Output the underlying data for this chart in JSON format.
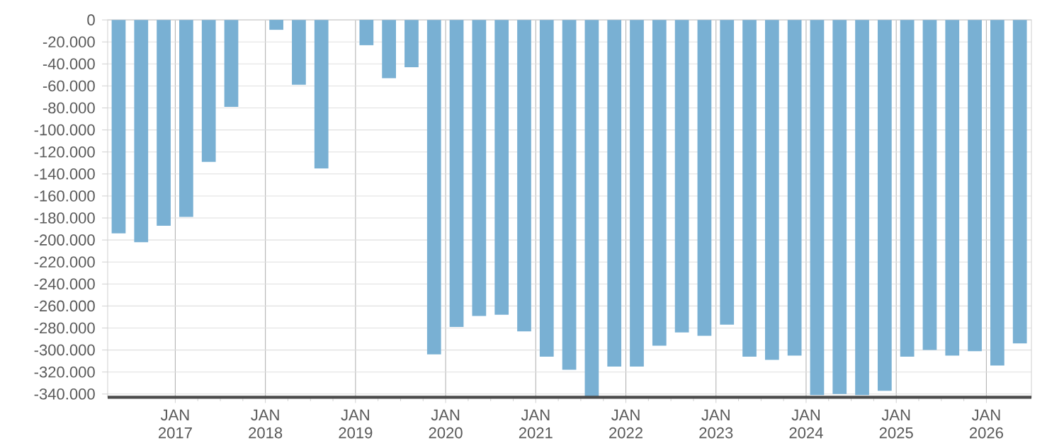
{
  "chart_data": {
    "type": "bar",
    "color": "#79b0d3",
    "grid": true,
    "x": [
      "2016-05-15",
      "2016-08-15",
      "2016-11-15",
      "2017-02-15",
      "2017-05-15",
      "2017-08-15",
      "2017-11-15",
      "2018-02-15",
      "2018-05-15",
      "2018-08-15",
      "2018-11-15",
      "2019-02-15",
      "2019-05-15",
      "2019-08-15",
      "2019-11-15",
      "2020-02-15",
      "2020-05-15",
      "2020-08-15",
      "2020-11-15",
      "2021-02-15",
      "2021-05-15",
      "2021-08-15",
      "2021-11-15",
      "2022-02-15",
      "2022-05-15",
      "2022-08-15",
      "2022-11-15",
      "2023-02-15",
      "2023-05-15",
      "2023-08-15",
      "2023-11-15",
      "2024-02-15",
      "2024-05-15",
      "2024-08-15",
      "2024-11-15",
      "2025-02-15",
      "2025-05-15",
      "2025-08-15",
      "2025-11-15",
      "2026-02-15",
      "2026-05-15"
    ],
    "values": [
      -194000,
      -202000,
      -187000,
      -179000,
      -129000,
      -79000,
      null,
      -9000,
      -59000,
      -135000,
      null,
      -23000,
      -53000,
      -43000,
      -304000,
      -279000,
      -269000,
      -268000,
      -283000,
      -306000,
      -318000,
      -343000,
      -315000,
      -315000,
      -296000,
      -284000,
      -287000,
      -277000,
      -306000,
      -309000,
      -305000,
      -341000,
      -340000,
      -341000,
      -337000,
      -306000,
      -300000,
      -305000,
      -301000,
      -314000,
      -294000
    ],
    "xlim": [
      "2016-04",
      "2026-07"
    ],
    "xticks": [
      {
        "value": "2017-01",
        "label": "JAN 2017"
      },
      {
        "value": "2018-01",
        "label": "JAN 2018"
      },
      {
        "value": "2019-01",
        "label": "JAN 2019"
      },
      {
        "value": "2020-01",
        "label": "JAN 2020"
      },
      {
        "value": "2021-01",
        "label": "JAN 2021"
      },
      {
        "value": "2022-01",
        "label": "JAN 2022"
      },
      {
        "value": "2023-01",
        "label": "JAN 2023"
      },
      {
        "value": "2024-01",
        "label": "JAN 2024"
      },
      {
        "value": "2025-01",
        "label": "JAN 2025"
      },
      {
        "value": "2026-01",
        "label": "JAN 2026"
      }
    ],
    "ylim": [
      -343000,
      0
    ],
    "yticks": [
      0,
      {
        "value": -20000,
        "label": "-20.000"
      },
      {
        "value": -40000,
        "label": "-40.000"
      },
      {
        "value": -60000,
        "label": "-60.000"
      },
      {
        "value": -80000,
        "label": "-80.000"
      },
      {
        "value": -100000,
        "label": "-100.000"
      },
      {
        "value": -120000,
        "label": "-120.000"
      },
      {
        "value": -140000,
        "label": "-140.000"
      },
      {
        "value": -160000,
        "label": "-160.000"
      },
      {
        "value": -180000,
        "label": "-180.000"
      },
      {
        "value": -200000,
        "label": "-200.000"
      },
      {
        "value": -220000,
        "label": "-220.000"
      },
      {
        "value": -240000,
        "label": "-240.000"
      },
      {
        "value": -260000,
        "label": "-260.000"
      },
      {
        "value": -280000,
        "label": "-280.000"
      },
      {
        "value": -300000,
        "label": "-300.000"
      },
      {
        "value": -320000,
        "label": "-320.000"
      },
      {
        "value": -340000,
        "label": "-340.000"
      }
    ]
  }
}
